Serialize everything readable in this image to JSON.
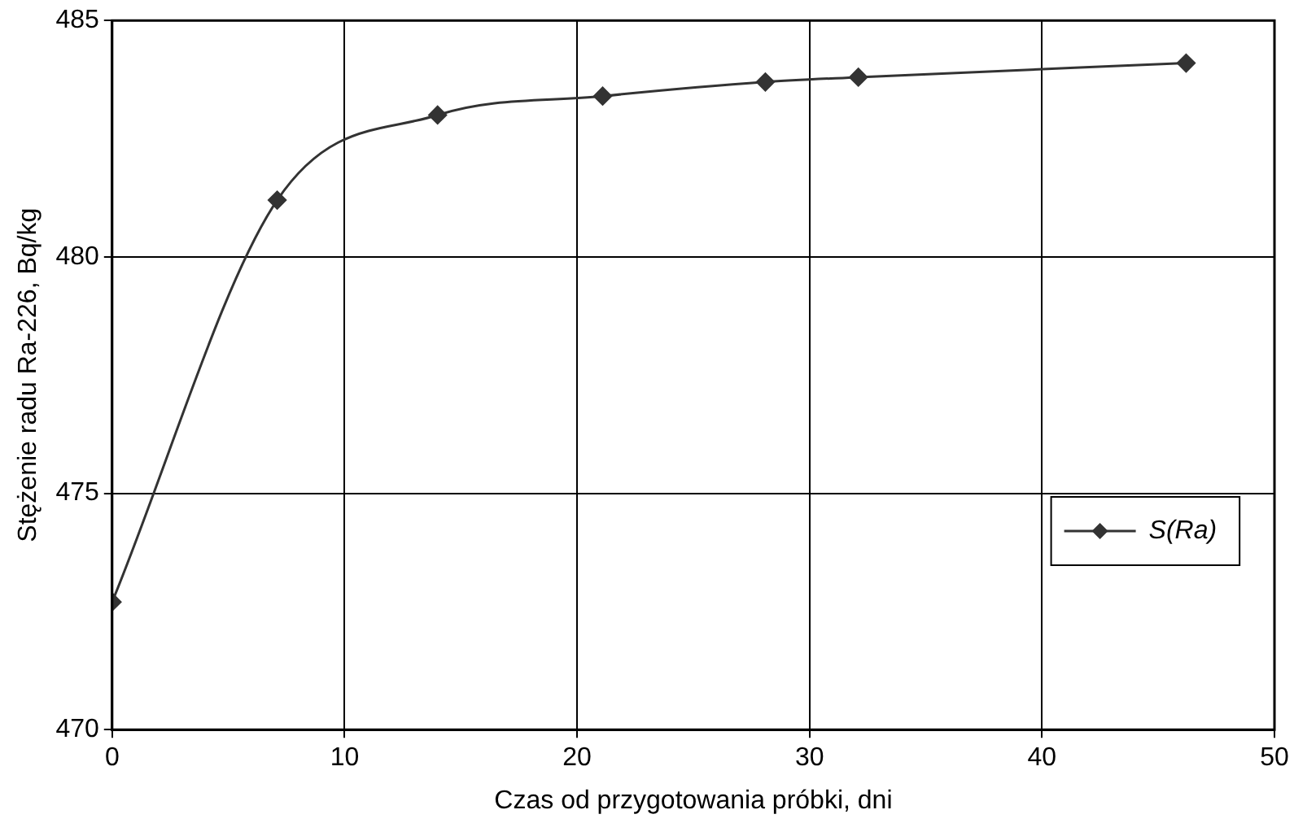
{
  "chart_data": {
    "type": "line",
    "xlabel": "Czas od przygotowania próbki, dni",
    "ylabel": "Stężenie radu Ra-226, Bq/kg",
    "x": [
      0,
      7.1,
      14,
      21.1,
      28.1,
      32.1,
      46.2
    ],
    "series": [
      {
        "name": "S(Ra)",
        "color": "#333333",
        "values": [
          472.7,
          481.2,
          483,
          483.4,
          483.7,
          483.8,
          484.1
        ]
      }
    ],
    "xlim": [
      0,
      50
    ],
    "xticks": [
      0,
      10,
      20,
      30,
      40,
      50
    ],
    "ylim": [
      470,
      485
    ],
    "yticks": [
      470,
      475,
      480,
      485
    ],
    "grid": true,
    "legend": "right",
    "marker": "diamond",
    "line_style": "solid"
  }
}
